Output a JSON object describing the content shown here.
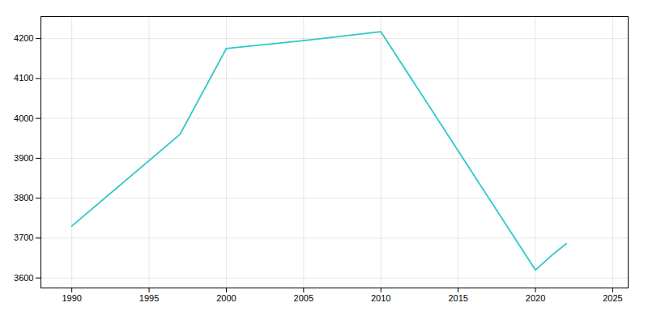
{
  "chart_data": {
    "type": "line",
    "x": [
      1990,
      1997,
      2000,
      2005,
      2010,
      2020,
      2021,
      2022
    ],
    "values": [
      3730,
      3960,
      4175,
      4195,
      4217,
      3620,
      3655,
      3686
    ],
    "color": "#2ec8c8",
    "xlim": [
      1988,
      2026
    ],
    "ylim": [
      3575,
      4255
    ],
    "xticks": [
      1990,
      1995,
      2000,
      2005,
      2010,
      2015,
      2020,
      2025
    ],
    "yticks": [
      3600,
      3700,
      3800,
      3900,
      4000,
      4100,
      4200
    ],
    "grid": true
  }
}
